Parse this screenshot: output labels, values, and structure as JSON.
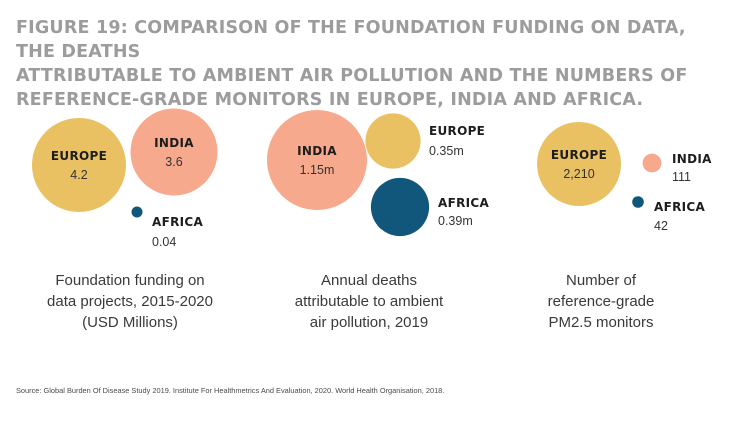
{
  "figure": {
    "title_lines": [
      "FIGURE 19: COMPARISON OF THE FOUNDATION FUNDING ON DATA, THE DEATHS",
      "ATTRIBUTABLE TO AMBIENT AIR POLLUTION AND THE NUMBERS OF",
      "REFERENCE-GRADE MONITORS IN EUROPE, INDIA AND AFRICA."
    ],
    "source": "Source: Global Burden Of Disease Study 2019. Institute For Healthmetrics And Evaluation, 2020. World Health Organisation, 2018."
  },
  "colors": {
    "europe": "#e9c163",
    "india": "#f6a98c",
    "africa": "#11577b",
    "title": "#9c9c9c",
    "label_dark": "#1d1d1d"
  },
  "chart_data": [
    {
      "type": "bubble",
      "caption_lines": [
        "Foundation funding on",
        "data projects, 2015-2020",
        "(USD Millions)"
      ],
      "points": [
        {
          "region": "EUROPE",
          "value": 4.2,
          "value_label": "4.2",
          "color_key": "europe"
        },
        {
          "region": "INDIA",
          "value": 3.6,
          "value_label": "3.6",
          "color_key": "india"
        },
        {
          "region": "AFRICA",
          "value": 0.04,
          "value_label": "0.04",
          "color_key": "africa"
        }
      ]
    },
    {
      "type": "bubble",
      "caption_lines": [
        "Annual deaths",
        "attributable to ambient",
        "air pollution, 2019"
      ],
      "points": [
        {
          "region": "INDIA",
          "value": 1.15,
          "value_label": "1.15m",
          "color_key": "india"
        },
        {
          "region": "EUROPE",
          "value": 0.35,
          "value_label": "0.35m",
          "color_key": "europe"
        },
        {
          "region": "AFRICA",
          "value": 0.39,
          "value_label": "0.39m",
          "color_key": "africa"
        }
      ]
    },
    {
      "type": "bubble",
      "caption_lines": [
        "Number of",
        "reference-grade",
        "PM2.5 monitors"
      ],
      "points": [
        {
          "region": "EUROPE",
          "value": 2210,
          "value_label": "2,210",
          "color_key": "europe"
        },
        {
          "region": "INDIA",
          "value": 111,
          "value_label": "111",
          "color_key": "india"
        },
        {
          "region": "AFRICA",
          "value": 42,
          "value_label": "42",
          "color_key": "africa"
        }
      ]
    }
  ]
}
